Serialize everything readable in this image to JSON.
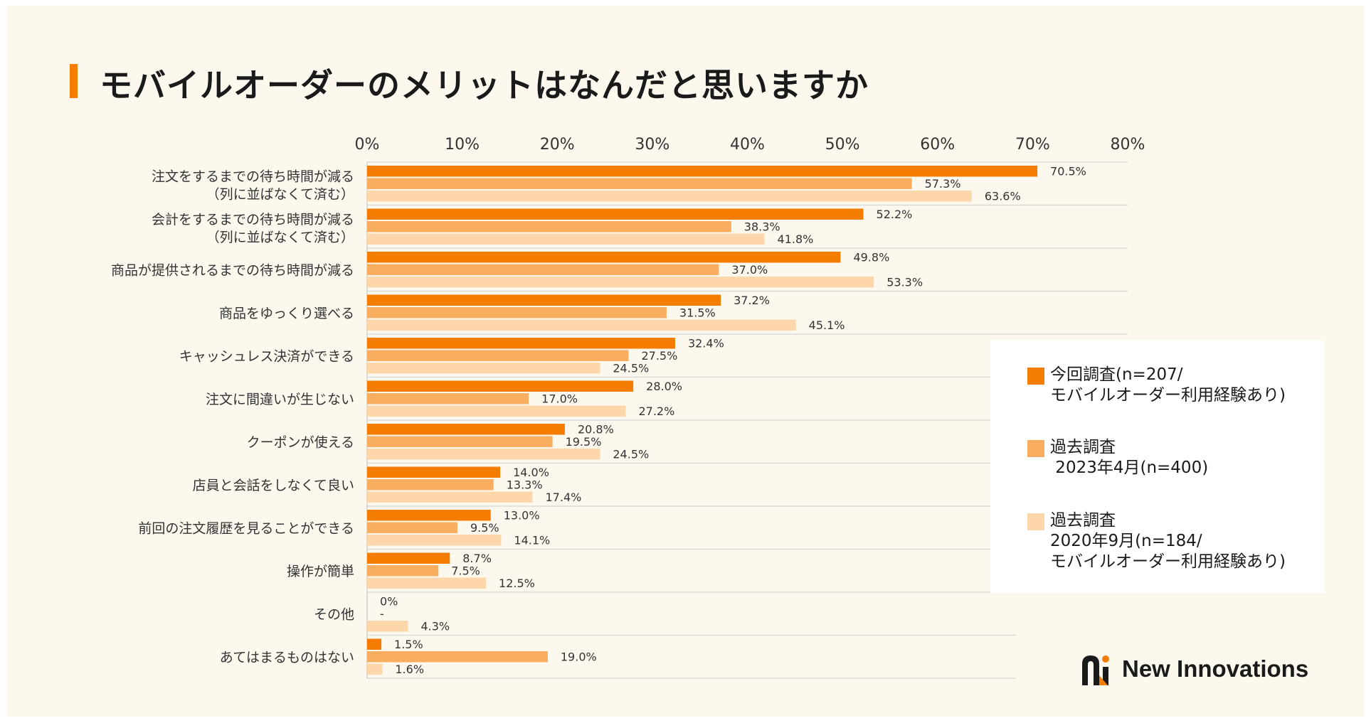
{
  "title": "モバイルオーダーのメリットはなんだと思いますか",
  "colors": {
    "series1": "#f47c00",
    "series2": "#f9ad5f",
    "series3": "#fdd6aa",
    "grid": "#dcdcdc"
  },
  "chart_data": {
    "type": "bar",
    "orientation": "horizontal",
    "title": "モバイルオーダーのメリットはなんだと思いますか",
    "xlim": [
      0,
      80
    ],
    "ticks": [
      "0%",
      "10%",
      "20%",
      "30%",
      "40%",
      "50%",
      "60%",
      "70%",
      "80%"
    ],
    "tick_values": [
      0,
      10,
      20,
      30,
      40,
      50,
      60,
      70,
      80
    ],
    "categories": [
      [
        "注文をするまでの待ち時間が減る",
        "（列に並ばなくて済む）"
      ],
      [
        "会計をするまでの待ち時間が減る",
        "（列に並ばなくて済む）"
      ],
      [
        "商品が提供されるまでの待ち時間が減る"
      ],
      [
        "商品をゆっくり選べる"
      ],
      [
        "キャッシュレス決済ができる"
      ],
      [
        "注文に間違いが生じない"
      ],
      [
        "クーポンが使える"
      ],
      [
        "店員と会話をしなくて良い"
      ],
      [
        "前回の注文履歴を見ることができる"
      ],
      [
        "操作が簡単"
      ],
      [
        "その他"
      ],
      [
        "あてはまるものはない"
      ]
    ],
    "series": [
      {
        "name": "今回調査(n=207/\nモバイルオーダー利用経験あり)",
        "values": [
          70.5,
          52.2,
          49.8,
          37.2,
          32.4,
          28.0,
          20.8,
          14.0,
          13.0,
          8.7,
          0,
          1.5
        ],
        "labels": [
          "70.5%",
          "52.2%",
          "49.8%",
          "37.2%",
          "32.4%",
          "28.0%",
          "20.8%",
          "14.0%",
          "13.0%",
          "8.7%",
          "0%",
          "1.5%"
        ]
      },
      {
        "name": "過去調査\n 2023年4月(n=400)",
        "values": [
          57.3,
          38.3,
          37.0,
          31.5,
          27.5,
          17.0,
          19.5,
          13.3,
          9.5,
          7.5,
          null,
          19.0
        ],
        "labels": [
          "57.3%",
          "38.3%",
          "37.0%",
          "31.5%",
          "27.5%",
          "17.0%",
          "19.5%",
          "13.3%",
          "9.5%",
          "7.5%",
          "-",
          "19.0%"
        ]
      },
      {
        "name": "過去調査\n2020年9月(n=184/\nモバイルオーダー利用経験あり)",
        "values": [
          63.6,
          41.8,
          53.3,
          45.1,
          24.5,
          27.2,
          24.5,
          17.4,
          14.1,
          12.5,
          4.3,
          1.6
        ],
        "labels": [
          "63.6%",
          "41.8%",
          "53.3%",
          "45.1%",
          "24.5%",
          "27.2%",
          "24.5%",
          "17.4%",
          "14.1%",
          "12.5%",
          "4.3%",
          "1.6%"
        ]
      }
    ],
    "legend": "right"
  },
  "legend": [
    {
      "text": "今回調査(n=207/\nモバイルオーダー利用経験あり)"
    },
    {
      "text": "過去調査\n 2023年4月(n=400)"
    },
    {
      "text": "過去調査\n2020年9月(n=184/\nモバイルオーダー利用経験あり)"
    }
  ],
  "logo": {
    "text": "New Innovations"
  }
}
